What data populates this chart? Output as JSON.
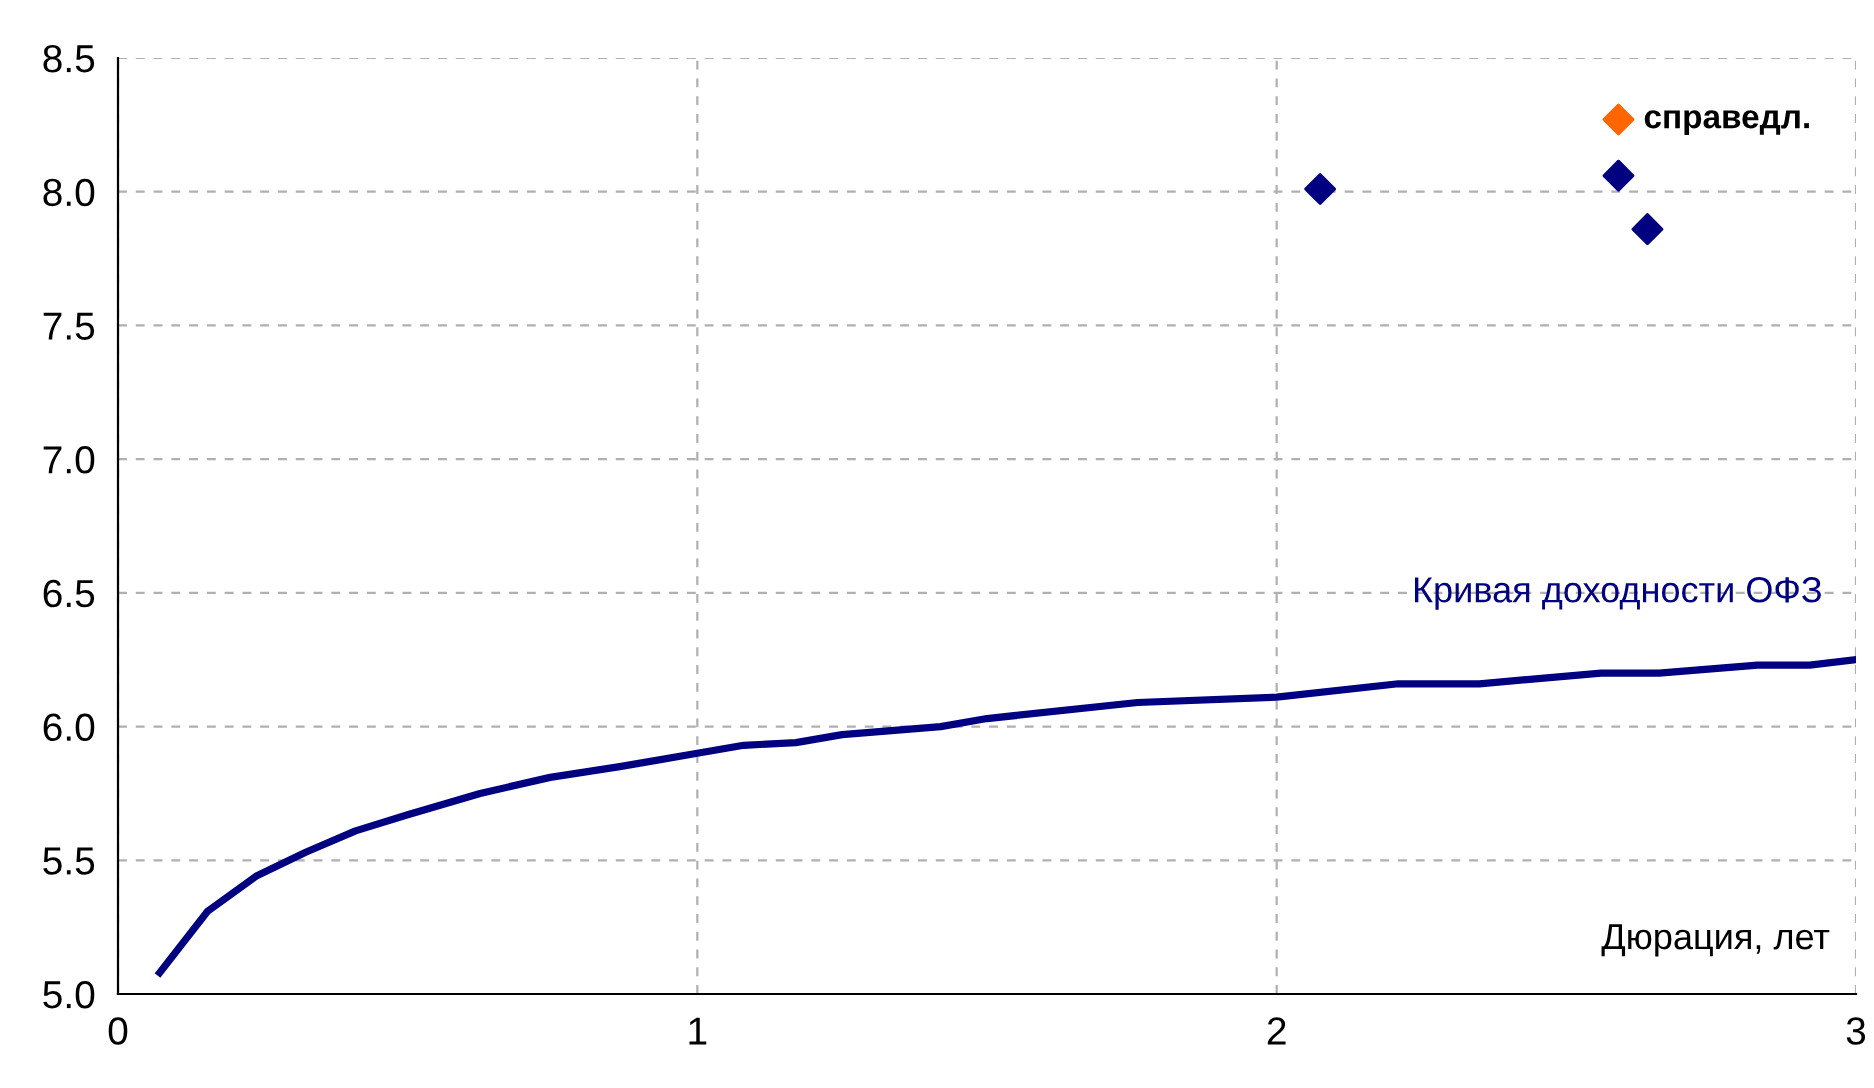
{
  "chart_data": {
    "type": "line",
    "xlabel": "Дюрация, лет",
    "series": [
      {
        "name": "Кривая доходности ОФЗ",
        "color": "#000080",
        "x": [
          0.072,
          0.155,
          0.238,
          0.324,
          0.41,
          0.5,
          0.625,
          0.746,
          0.866,
          1.0,
          1.08,
          1.17,
          1.25,
          1.42,
          1.5,
          1.76,
          2.0,
          2.21,
          2.35,
          2.56,
          2.66,
          2.83,
          2.92,
          3.0
        ],
        "values": [
          5.08,
          5.31,
          5.44,
          5.53,
          5.61,
          5.67,
          5.75,
          5.81,
          5.85,
          5.9,
          5.93,
          5.94,
          5.97,
          6.0,
          6.03,
          6.09,
          6.11,
          6.16,
          6.16,
          6.2,
          6.2,
          6.23,
          6.23,
          6.25
        ]
      },
      {
        "type": "scatter",
        "color": "#000080",
        "marker": "diamond",
        "x": [
          2.075,
          2.59,
          2.64
        ],
        "values": [
          8.01,
          8.06,
          7.86
        ]
      },
      {
        "name": "справедл.",
        "type": "scatter",
        "color": "#ff6600",
        "marker": "diamond",
        "x": [
          2.59
        ],
        "values": [
          8.27
        ]
      }
    ],
    "xlim": [
      0,
      3
    ],
    "ylim": [
      5,
      8.5
    ],
    "xticks": [
      0,
      1,
      2,
      3
    ],
    "yticks": [
      {
        "value": 5,
        "label": "5.0"
      },
      {
        "value": 5.5,
        "label": "5.5"
      },
      {
        "value": 6,
        "label": "6.0"
      },
      {
        "value": 6.5,
        "label": "6.5"
      },
      {
        "value": 7,
        "label": "7.0"
      },
      {
        "value": 7.5,
        "label": "7.5"
      },
      {
        "value": 8,
        "label": "8.0"
      },
      {
        "value": 8.5,
        "label": "8.5"
      }
    ],
    "grid": true,
    "legend": false
  }
}
